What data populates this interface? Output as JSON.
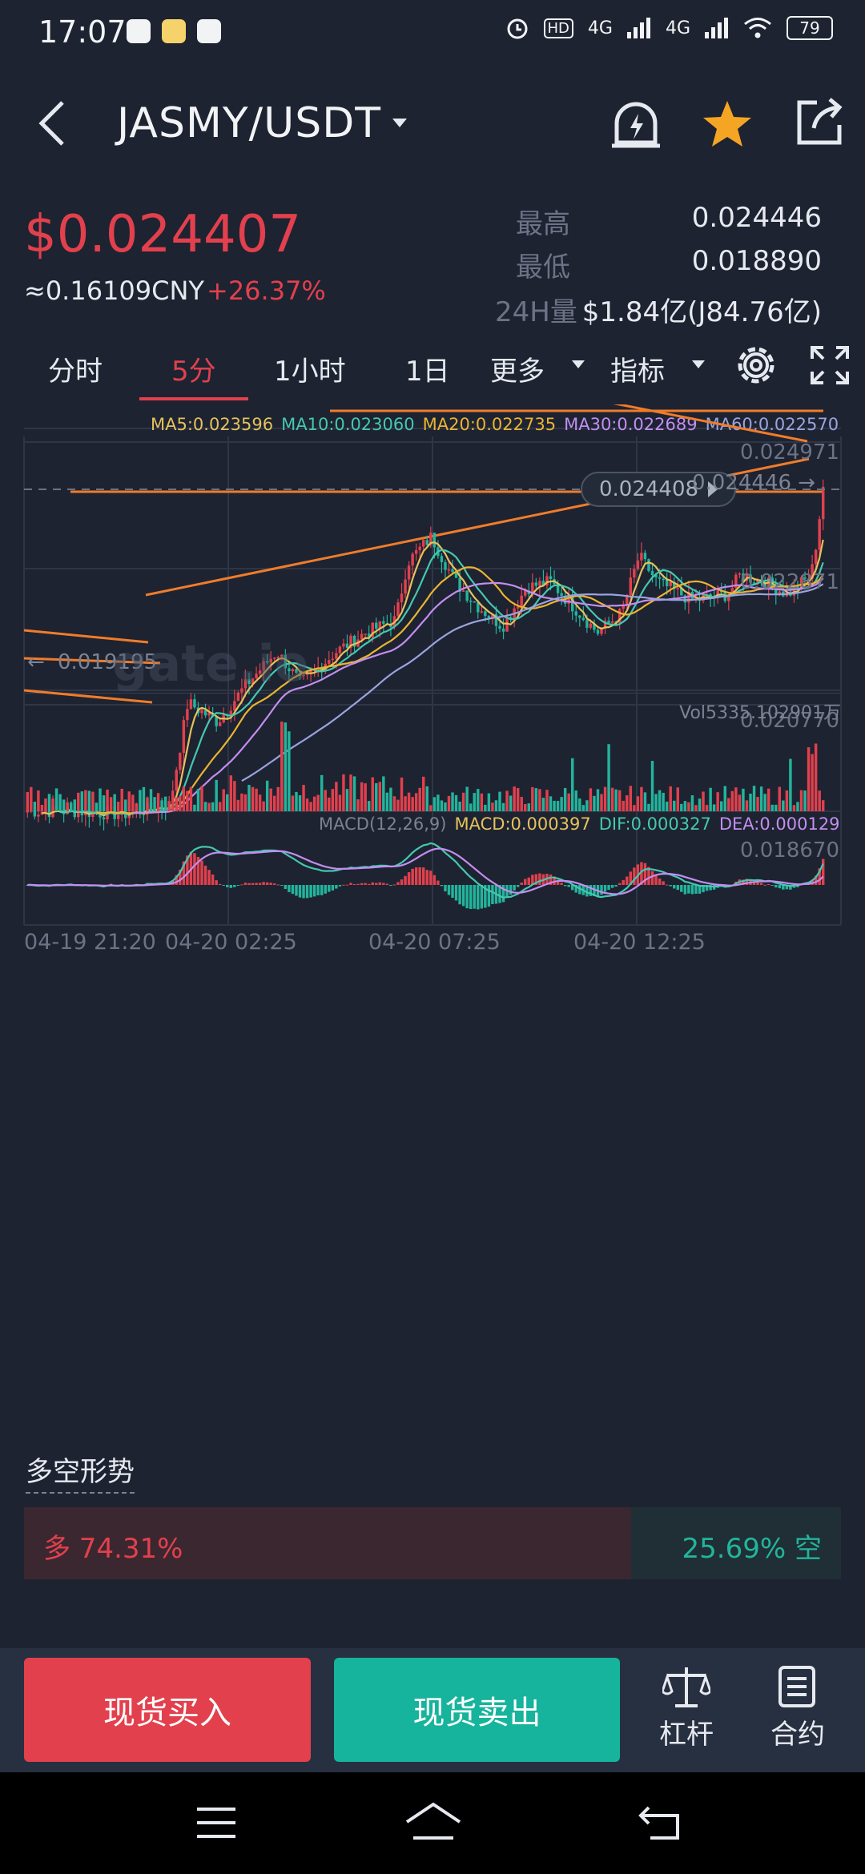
{
  "status_bar": {
    "time": "17:07",
    "network": "4G",
    "battery": "79"
  },
  "header": {
    "pair": "JASMY/USDT"
  },
  "ticker": {
    "price": "$0.024407",
    "cny": "≈0.16109CNY",
    "change": "+26.37%",
    "high_label": "最高",
    "high": "0.024446",
    "low_label": "最低",
    "low": "0.018890",
    "vol_label": "24H量",
    "vol": "$1.84亿(J84.76亿)"
  },
  "tabs": {
    "time": "分时",
    "m5": "5分",
    "h1": "1小时",
    "d1": "1日",
    "more": "更多",
    "indicator": "指标"
  },
  "chart_data": {
    "type": "candlestick",
    "ma": [
      {
        "label": "MA5:0.023596",
        "color": "#e6c15c"
      },
      {
        "label": "MA10:0.023060",
        "color": "#45c8b0"
      },
      {
        "label": "MA20:0.022735",
        "color": "#ebb432"
      },
      {
        "label": "MA30:0.022689",
        "color": "#c38ef0"
      },
      {
        "label": "MA60:0.022570",
        "color": "#9aa4de"
      }
    ],
    "price_axis": [
      "0.024971",
      "0.022871",
      "0.020770",
      "0.018670"
    ],
    "ylim": [
      0.01867,
      0.024971
    ],
    "high_marker": "0.024446",
    "low_marker": "0.019195",
    "current_tag": "0.024408",
    "watermark": "gate.io",
    "vol_label": "Vol5335.102901万",
    "macd": {
      "title": "MACD(12,26,9)",
      "macd": "MACD:0.000397",
      "dif": "DIF:0.000327",
      "dea": "DEA:0.000129"
    },
    "x_ticks": [
      "04-19 21:20",
      "04-20 02:25",
      "04-20 07:25",
      "04-20 12:25"
    ],
    "up_color": "#e2404d",
    "down_color": "#23b49c"
  },
  "sentiment": {
    "title": "多空形势",
    "long": "多 74.31%",
    "short": "25.69% 空",
    "long_ratio": 0.7431
  },
  "bottom": {
    "buy": "现货买入",
    "sell": "现货卖出",
    "leverage": "杠杆",
    "contract": "合约"
  }
}
